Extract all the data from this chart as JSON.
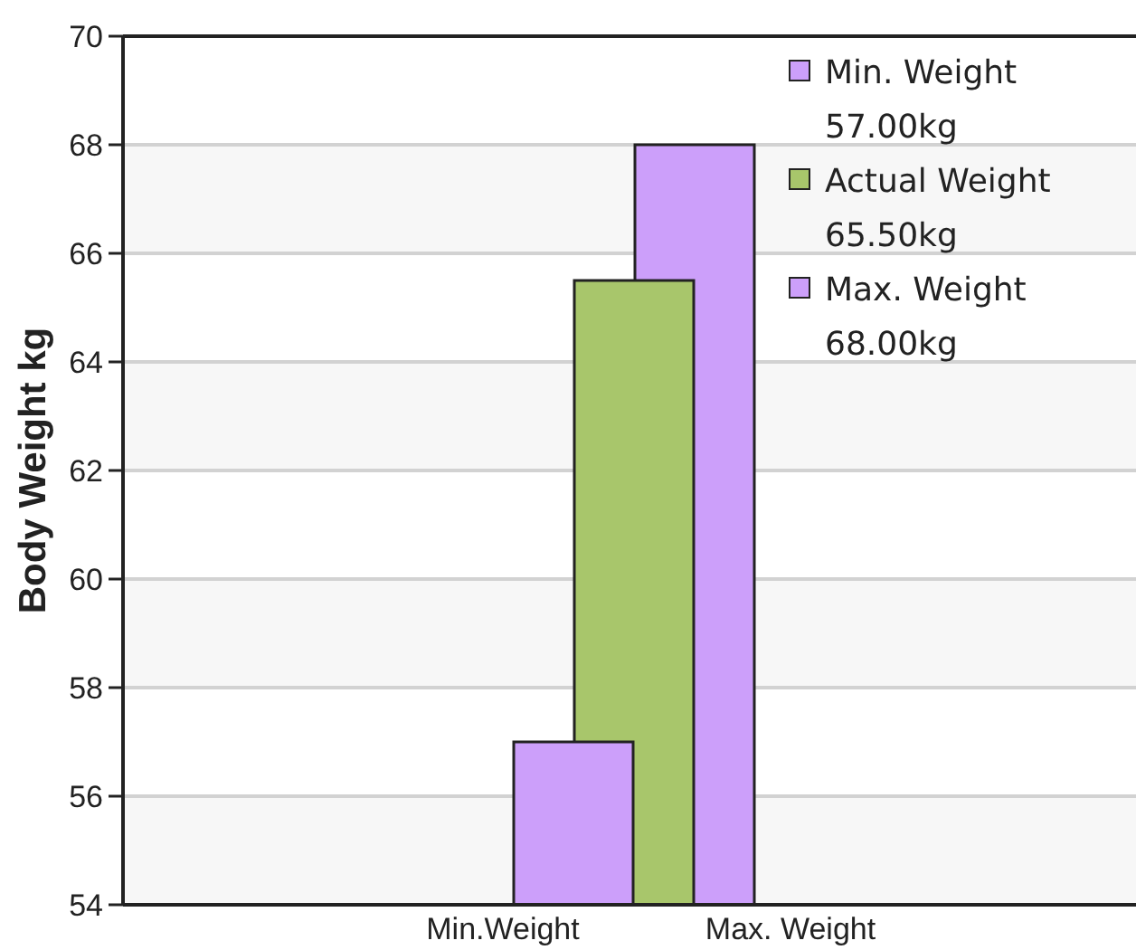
{
  "chart_data": {
    "type": "bar",
    "ylabel": "Body Weight kg",
    "categories": [
      null
    ],
    "series": [
      {
        "name": "Min. Weight 57.00kg",
        "color": "#cc9ffa",
        "values": [
          57
        ]
      },
      {
        "name": "Actual Weight 65.50kg",
        "color": "#a8c66b",
        "values": [
          65.5
        ]
      },
      {
        "name": "Max. Weight 68.00kg",
        "color": "#cc9ffa",
        "values": [
          68
        ]
      }
    ],
    "ylim": [
      54,
      70
    ],
    "yticks": [
      54,
      56,
      58,
      60,
      62,
      64,
      66,
      68,
      70
    ],
    "grid": "y",
    "legend": "top right",
    "annotations": [
      "Min.Weight",
      "Max. Weight"
    ]
  }
}
